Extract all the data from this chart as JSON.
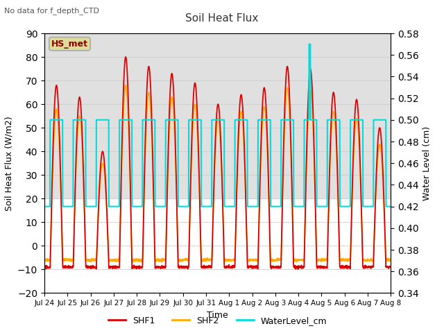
{
  "title": "Soil Heat Flux",
  "subtitle": "No data for f_depth_CTD",
  "xlabel": "Time",
  "ylabel_left": "Soil Heat Flux (W/m2)",
  "ylabel_right": "Water Level (cm)",
  "ylim_left": [
    -20,
    90
  ],
  "ylim_right": [
    0.34,
    0.58
  ],
  "yticks_left": [
    -20,
    -10,
    0,
    10,
    20,
    30,
    40,
    50,
    60,
    70,
    80,
    90
  ],
  "yticks_right": [
    0.34,
    0.36,
    0.38,
    0.4,
    0.42,
    0.44,
    0.46,
    0.48,
    0.5,
    0.52,
    0.54,
    0.56,
    0.58
  ],
  "xtick_labels": [
    "Jul 24",
    "Jul 25",
    "Jul 26",
    "Jul 27",
    "Jul 28",
    "Jul 29",
    "Jul 30",
    "Jul 31",
    "Aug 1",
    "Aug 2",
    "Aug 3",
    "Aug 4",
    "Aug 5",
    "Aug 6",
    "Aug 7",
    "Aug 8"
  ],
  "shf1_color": "#dd0000",
  "shf2_color": "#ffaa00",
  "water_color": "#00dddd",
  "legend_box_facecolor": "#dddd99",
  "legend_box_edgecolor": "#aaaaaa",
  "legend_box_label": "HS_met",
  "legend_box_textcolor": "#880000",
  "bg_band_color": "#e0e0e0",
  "bg_band_low": 20,
  "bg_band_high": 90,
  "grid_color": "#cccccc",
  "linewidth_shf": 1.3,
  "linewidth_water": 1.5,
  "water_high": 0.5,
  "water_low": 0.42,
  "water_spike": 0.57,
  "night_min_shf1": -9,
  "night_min_shf2": -6,
  "day_peaks_shf1": [
    68,
    63,
    40,
    80,
    76,
    73,
    69,
    60,
    64,
    67,
    76,
    75,
    65,
    62,
    50
  ],
  "day_peaks_shf2": [
    58,
    55,
    35,
    68,
    65,
    63,
    60,
    54,
    57,
    59,
    67,
    66,
    57,
    54,
    43
  ],
  "n_days": 15,
  "samples_per_hour": 6
}
